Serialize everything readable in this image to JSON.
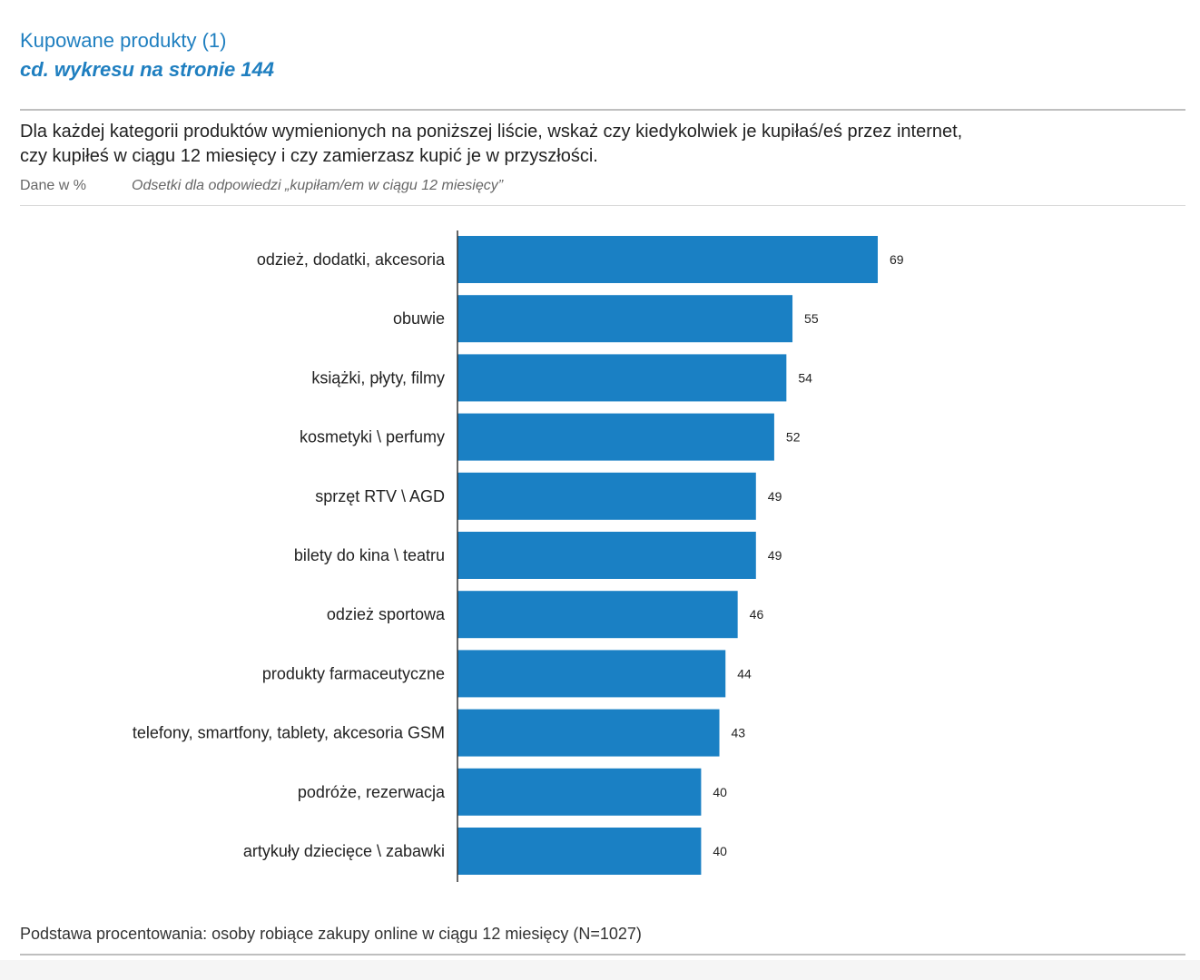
{
  "header": {
    "title": "Kupowane produkty (1)",
    "subtitle": "cd. wykresu na stronie 144"
  },
  "question": {
    "line1": "Dla każdej kategorii produktów wymienionych na poniższej liście, wskaż czy kiedykolwiek je kupiłaś/eś przez internet,",
    "line2": "czy kupiłeś w ciągu 12 miesięcy i czy zamierzasz kupić je w przyszłości."
  },
  "meta": {
    "units": "Dane w %",
    "note": "Odsetki dla odpowiedzi „kupiłam/em w ciągu 12 miesięcy”"
  },
  "footnote": "Podstawa procentowania: osoby robiące zakupy online w ciągu 12 miesięcy (N=1027)",
  "colors": {
    "accent": "#1f7fc0",
    "bar": "#1a80c4"
  },
  "chart_data": {
    "type": "bar",
    "orientation": "horizontal",
    "title": "",
    "xlabel": "",
    "ylabel": "",
    "xlim": [
      0,
      100
    ],
    "grid": false,
    "categories": [
      "odzież, dodatki, akcesoria",
      "obuwie",
      "książki, płyty, filmy",
      "kosmetyki \\ perfumy",
      "sprzęt RTV \\ AGD",
      "bilety do kina \\ teatru",
      "odzież sportowa",
      "produkty farmaceutyczne",
      "telefony, smartfony, tablety, akcesoria GSM",
      "podróże, rezerwacja",
      "artykuły dziecięce \\ zabawki"
    ],
    "values": [
      69,
      55,
      54,
      52,
      49,
      49,
      46,
      44,
      43,
      40,
      40
    ]
  }
}
